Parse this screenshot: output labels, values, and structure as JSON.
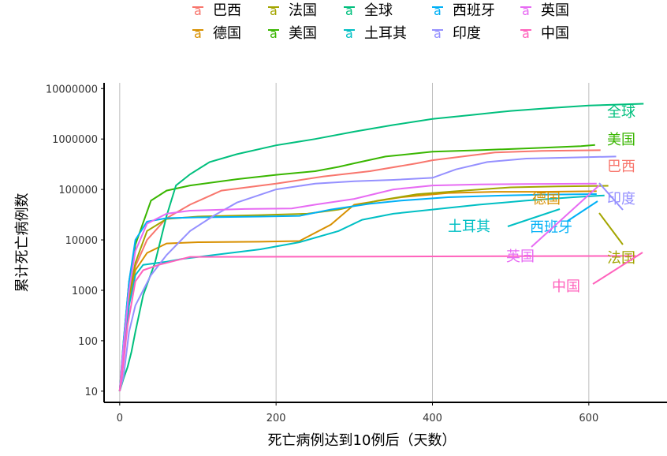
{
  "chart_data": {
    "type": "line",
    "xlabel": "死亡病例达到10例后（天数）",
    "ylabel": "累计死亡病例数",
    "xlim": [
      -20,
      700
    ],
    "ylim": [
      6,
      13000000
    ],
    "y_scale": "log",
    "x_ticks": [
      0,
      200,
      400,
      600
    ],
    "y_ticks": [
      10,
      100,
      1000,
      10000,
      100000,
      1000000,
      10000000
    ],
    "x_tick_labels": [
      "0",
      "200",
      "400",
      "600"
    ],
    "y_tick_labels": [
      "10",
      "100",
      "1000",
      "10000",
      "100000",
      "1000000",
      "10000000"
    ],
    "grid": "vertical major lines",
    "legend": {
      "position": "top",
      "symbol": "a"
    },
    "series": [
      {
        "name": "巴西",
        "color": "#f8766d",
        "label": "巴西",
        "points": [
          [
            0,
            10
          ],
          [
            5,
            60
          ],
          [
            12,
            600
          ],
          [
            20,
            3000
          ],
          [
            35,
            10000
          ],
          [
            60,
            27000
          ],
          [
            90,
            50000
          ],
          [
            130,
            95000
          ],
          [
            200,
            130000
          ],
          [
            260,
            180000
          ],
          [
            320,
            230000
          ],
          [
            380,
            330000
          ],
          [
            400,
            380000
          ],
          [
            480,
            540000
          ],
          [
            540,
            580000
          ],
          [
            615,
            600000
          ]
        ]
      },
      {
        "name": "德国",
        "color": "#d89000",
        "label": "德国",
        "points": [
          [
            0,
            10
          ],
          [
            5,
            60
          ],
          [
            12,
            700
          ],
          [
            20,
            2500
          ],
          [
            35,
            5500
          ],
          [
            60,
            8500
          ],
          [
            100,
            9000
          ],
          [
            180,
            9200
          ],
          [
            230,
            9500
          ],
          [
            270,
            20000
          ],
          [
            300,
            50000
          ],
          [
            360,
            70000
          ],
          [
            420,
            85000
          ],
          [
            480,
            90000
          ],
          [
            540,
            90000
          ],
          [
            610,
            92000
          ]
        ]
      },
      {
        "name": "法国",
        "color": "#a3a500",
        "label": "法国",
        "points": [
          [
            0,
            10
          ],
          [
            5,
            80
          ],
          [
            12,
            800
          ],
          [
            20,
            3500
          ],
          [
            35,
            15000
          ],
          [
            60,
            26000
          ],
          [
            100,
            29000
          ],
          [
            180,
            31000
          ],
          [
            240,
            33000
          ],
          [
            280,
            40000
          ],
          [
            330,
            60000
          ],
          [
            380,
            80000
          ],
          [
            440,
            95000
          ],
          [
            500,
            110000
          ],
          [
            560,
            115000
          ],
          [
            625,
            118000
          ]
        ]
      },
      {
        "name": "美国",
        "color": "#39b600",
        "label": "美国",
        "points": [
          [
            0,
            10
          ],
          [
            5,
            100
          ],
          [
            12,
            1500
          ],
          [
            20,
            8000
          ],
          [
            40,
            60000
          ],
          [
            60,
            95000
          ],
          [
            90,
            120000
          ],
          [
            150,
            160000
          ],
          [
            200,
            195000
          ],
          [
            250,
            230000
          ],
          [
            280,
            280000
          ],
          [
            300,
            330000
          ],
          [
            340,
            450000
          ],
          [
            400,
            560000
          ],
          [
            460,
            600000
          ],
          [
            530,
            660000
          ],
          [
            590,
            720000
          ],
          [
            608,
            760000
          ]
        ]
      },
      {
        "name": "全球",
        "color": "#00bf7d",
        "label": "全球",
        "points": [
          [
            0,
            10
          ],
          [
            5,
            18
          ],
          [
            10,
            30
          ],
          [
            15,
            60
          ],
          [
            20,
            150
          ],
          [
            30,
            800
          ],
          [
            45,
            3500
          ],
          [
            60,
            30000
          ],
          [
            72,
            120000
          ],
          [
            90,
            200000
          ],
          [
            115,
            350000
          ],
          [
            150,
            500000
          ],
          [
            200,
            750000
          ],
          [
            250,
            1000000
          ],
          [
            300,
            1400000
          ],
          [
            350,
            1900000
          ],
          [
            400,
            2500000
          ],
          [
            450,
            3000000
          ],
          [
            500,
            3600000
          ],
          [
            550,
            4100000
          ],
          [
            600,
            4600000
          ],
          [
            670,
            5000000
          ]
        ]
      },
      {
        "name": "土耳其",
        "color": "#00bfc4",
        "label": "土耳其",
        "points": [
          [
            0,
            10
          ],
          [
            5,
            50
          ],
          [
            12,
            500
          ],
          [
            20,
            2000
          ],
          [
            30,
            3200
          ],
          [
            60,
            3700
          ],
          [
            80,
            4200
          ],
          [
            120,
            5000
          ],
          [
            180,
            6500
          ],
          [
            230,
            9000
          ],
          [
            280,
            15000
          ],
          [
            310,
            25000
          ],
          [
            350,
            33000
          ],
          [
            400,
            40000
          ],
          [
            460,
            50000
          ],
          [
            520,
            60000
          ],
          [
            580,
            70000
          ],
          [
            620,
            76000
          ]
        ]
      },
      {
        "name": "西班牙",
        "color": "#00b0f6",
        "label": "西班牙",
        "points": [
          [
            0,
            10
          ],
          [
            5,
            100
          ],
          [
            12,
            1500
          ],
          [
            20,
            10000
          ],
          [
            35,
            23000
          ],
          [
            60,
            27000
          ],
          [
            100,
            28000
          ],
          [
            180,
            29000
          ],
          [
            230,
            30000
          ],
          [
            270,
            40000
          ],
          [
            320,
            52000
          ],
          [
            360,
            60000
          ],
          [
            420,
            70000
          ],
          [
            480,
            75000
          ],
          [
            540,
            79000
          ],
          [
            610,
            81000
          ]
        ]
      },
      {
        "name": "印度",
        "color": "#9590ff",
        "label": "印度",
        "points": [
          [
            0,
            10
          ],
          [
            5,
            20
          ],
          [
            12,
            150
          ],
          [
            20,
            500
          ],
          [
            40,
            2000
          ],
          [
            60,
            5000
          ],
          [
            90,
            15000
          ],
          [
            120,
            30000
          ],
          [
            150,
            55000
          ],
          [
            200,
            100000
          ],
          [
            250,
            130000
          ],
          [
            300,
            145000
          ],
          [
            350,
            155000
          ],
          [
            400,
            170000
          ],
          [
            430,
            250000
          ],
          [
            470,
            350000
          ],
          [
            520,
            410000
          ],
          [
            580,
            430000
          ],
          [
            635,
            450000
          ]
        ]
      },
      {
        "name": "英国",
        "color": "#e76bf3",
        "label": "英国",
        "points": [
          [
            0,
            10
          ],
          [
            5,
            80
          ],
          [
            12,
            1000
          ],
          [
            20,
            6000
          ],
          [
            35,
            21000
          ],
          [
            60,
            33000
          ],
          [
            90,
            38000
          ],
          [
            160,
            41000
          ],
          [
            220,
            42000
          ],
          [
            250,
            50000
          ],
          [
            300,
            65000
          ],
          [
            350,
            100000
          ],
          [
            400,
            120000
          ],
          [
            460,
            126000
          ],
          [
            520,
            128000
          ],
          [
            610,
            130000
          ]
        ]
      },
      {
        "name": "中国",
        "color": "#ff62bc",
        "label": "中国",
        "points": [
          [
            0,
            10
          ],
          [
            3,
            20
          ],
          [
            10,
            200
          ],
          [
            20,
            1500
          ],
          [
            30,
            2500
          ],
          [
            50,
            3200
          ],
          [
            90,
            4600
          ],
          [
            400,
            4700
          ],
          [
            660,
            4800
          ]
        ]
      }
    ]
  }
}
